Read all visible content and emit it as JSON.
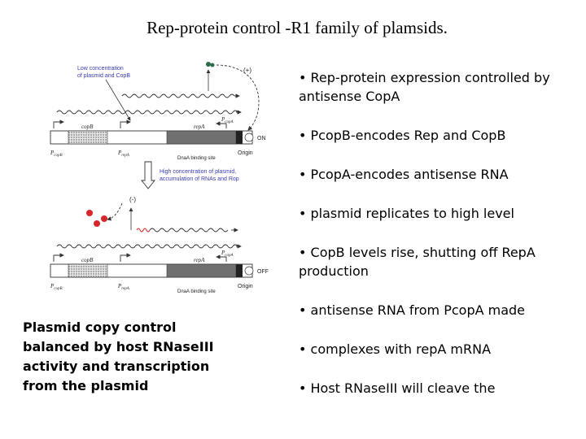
{
  "slide": {
    "title": "Rep-protein control -R1 family of plamsids.",
    "caption": "Plasmid copy control balanced by host RNaseIII activity and transcription from the plasmid",
    "bullets": [
      "• Rep-protein expression controlled by antisense CopA",
      "• PcopB-encodes Rep and CopB",
      "• PcopA-encodes antisense RNA",
      "• plasmid replicates to high level",
      "• CopB levels rise, shutting off RepA production",
      "• antisense RNA from PcopA made",
      "• complexes with repA mRNA",
      "• Host RNaseIII will cleave the"
    ]
  },
  "diagram": {
    "top": {
      "condition_line1": "Low concentration",
      "condition_line2": "of plasmid and CopB",
      "plus_label": "(+)",
      "state_label": "ON",
      "binding_label": "DnaA binding site"
    },
    "transition_line1": "High concentration of plasmid,",
    "transition_line2": "accumulation of RNAs and Rop",
    "bottom": {
      "minus_label": "(-)",
      "state_label": "OFF",
      "binding_label": "DnaA binding site"
    },
    "labels": {
      "pcopb": "P",
      "pcopb_sub": "copB",
      "pcopa": "P",
      "pcopa_sub": "copA",
      "prepa": "P",
      "prepa_sub": "repA",
      "copb_gene": "copB",
      "repa_gene": "repA",
      "origin": "Origin"
    },
    "colors": {
      "arrow": "#333333",
      "protein_green": "#2e6b4a",
      "protein_red": "#d8262c",
      "repa_box": "#707070",
      "copb_box": "#cfcfcf",
      "text_blue": "#3a3ab0"
    }
  }
}
